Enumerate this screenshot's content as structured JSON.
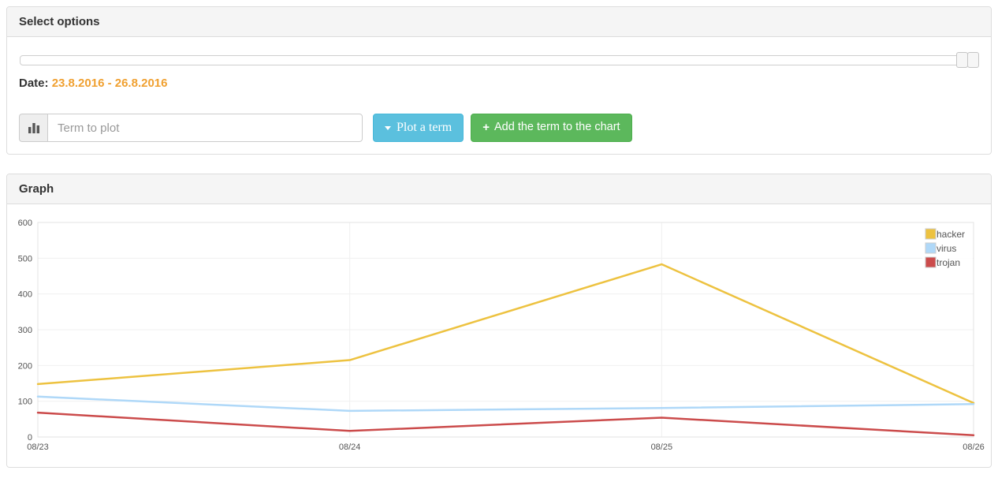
{
  "select_options": {
    "title": "Select options",
    "slider": {
      "type": "range",
      "handles": 2,
      "handle_position": "right-end"
    },
    "date": {
      "label": "Date:",
      "value": "23.8.2016 - 26.8.2016"
    },
    "term_input": {
      "placeholder": "Term to plot",
      "value": ""
    },
    "buttons": {
      "plot_term": "Plot a term",
      "add_term": "Add the term to the chart"
    },
    "icons": {
      "addon": "bar-chart-icon",
      "plot_caret": "caret-down-icon",
      "add_plus": "plus-icon",
      "plus_glyph": "+"
    }
  },
  "graph": {
    "title": "Graph"
  },
  "colors": {
    "date_accent": "#f0a030",
    "info_button": "#5bc0de",
    "success_button": "#5cb85c",
    "panel_heading_bg": "#f5f5f5",
    "axis_text": "#545454"
  },
  "chart_data": {
    "type": "line",
    "x": [
      "08/23",
      "08/24",
      "08/25",
      "08/26"
    ],
    "series": [
      {
        "name": "hacker",
        "color": "#edc240",
        "values": [
          148,
          215,
          483,
          95
        ]
      },
      {
        "name": "virus",
        "color": "#afd8f8",
        "values": [
          113,
          73,
          81,
          92
        ]
      },
      {
        "name": "trojan",
        "color": "#cb4b4b",
        "values": [
          68,
          17,
          54,
          5
        ]
      }
    ],
    "ylim": [
      0,
      600
    ],
    "yticks": [
      0,
      100,
      200,
      300,
      400,
      500,
      600
    ],
    "legend": {
      "position": "top-right",
      "entries": [
        "hacker",
        "virus",
        "trojan"
      ]
    },
    "grid": true
  }
}
